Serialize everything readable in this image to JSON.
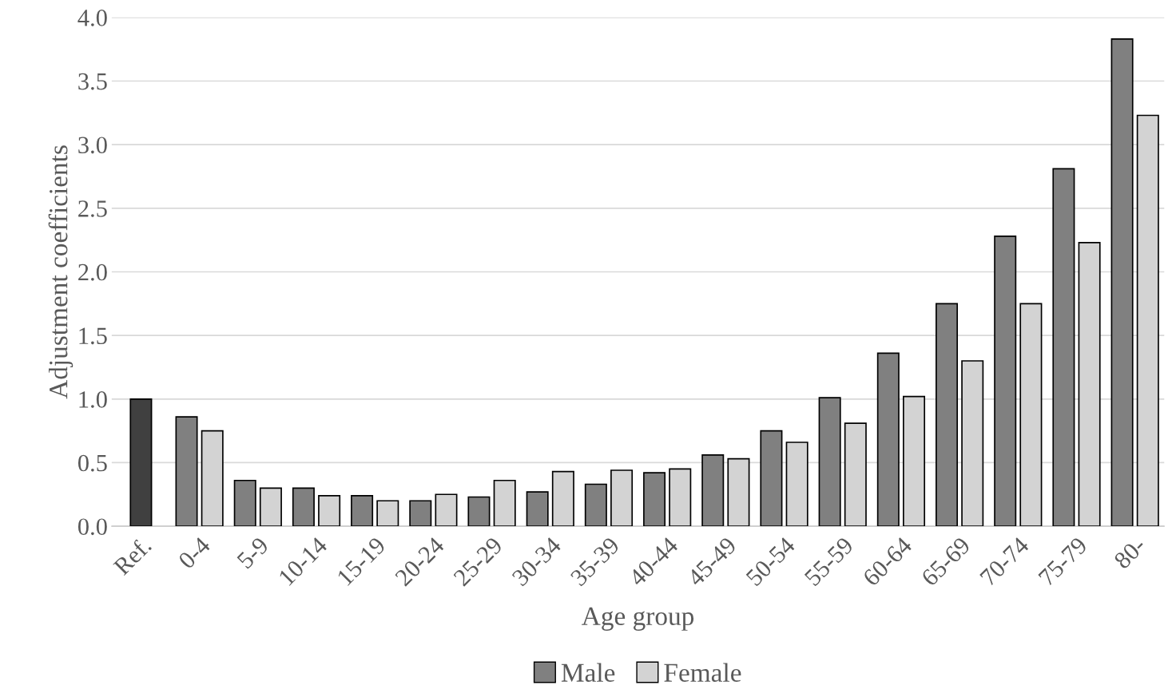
{
  "chart_data": {
    "type": "bar",
    "xlabel": "Age group",
    "ylabel": "Adjustment coefficients",
    "categories": [
      "Ref.",
      "0-4",
      "5-9",
      "10-14",
      "15-19",
      "20-24",
      "25-29",
      "30-34",
      "35-39",
      "40-44",
      "45-49",
      "50-54",
      "55-59",
      "60-64",
      "65-69",
      "70-74",
      "75-79",
      "80-"
    ],
    "series": [
      {
        "name": "Male",
        "color": "#808080",
        "colors": [
          "#404040",
          "#808080",
          "#808080",
          "#808080",
          "#808080",
          "#808080",
          "#808080",
          "#808080",
          "#808080",
          "#808080",
          "#808080",
          "#808080",
          "#808080",
          "#808080",
          "#808080",
          "#808080",
          "#808080",
          "#808080"
        ],
        "values": [
          1.0,
          0.86,
          0.36,
          0.3,
          0.24,
          0.2,
          0.23,
          0.27,
          0.33,
          0.42,
          0.56,
          0.75,
          1.01,
          1.36,
          1.75,
          2.28,
          2.81,
          3.83
        ]
      },
      {
        "name": "Female",
        "color": "#d3d3d3",
        "values": [
          null,
          0.75,
          0.3,
          0.24,
          0.2,
          0.25,
          0.36,
          0.43,
          0.44,
          0.45,
          0.53,
          0.66,
          0.81,
          1.02,
          1.3,
          1.75,
          2.23,
          3.23
        ]
      }
    ],
    "ylim": [
      0,
      4.0
    ],
    "yticks": [
      {
        "value": 0,
        "label": "0.0"
      },
      {
        "value": 0.5,
        "label": "0.5"
      },
      {
        "value": 1.0,
        "label": "1.0"
      },
      {
        "value": 1.5,
        "label": "1.5"
      },
      {
        "value": 2.0,
        "label": "2.0"
      },
      {
        "value": 2.5,
        "label": "2.5"
      },
      {
        "value": 3.0,
        "label": "3.0"
      },
      {
        "value": 3.5,
        "label": "3.5"
      },
      {
        "value": 4.0,
        "label": "4.0"
      }
    ],
    "grid": "y",
    "legend": "bottom"
  }
}
